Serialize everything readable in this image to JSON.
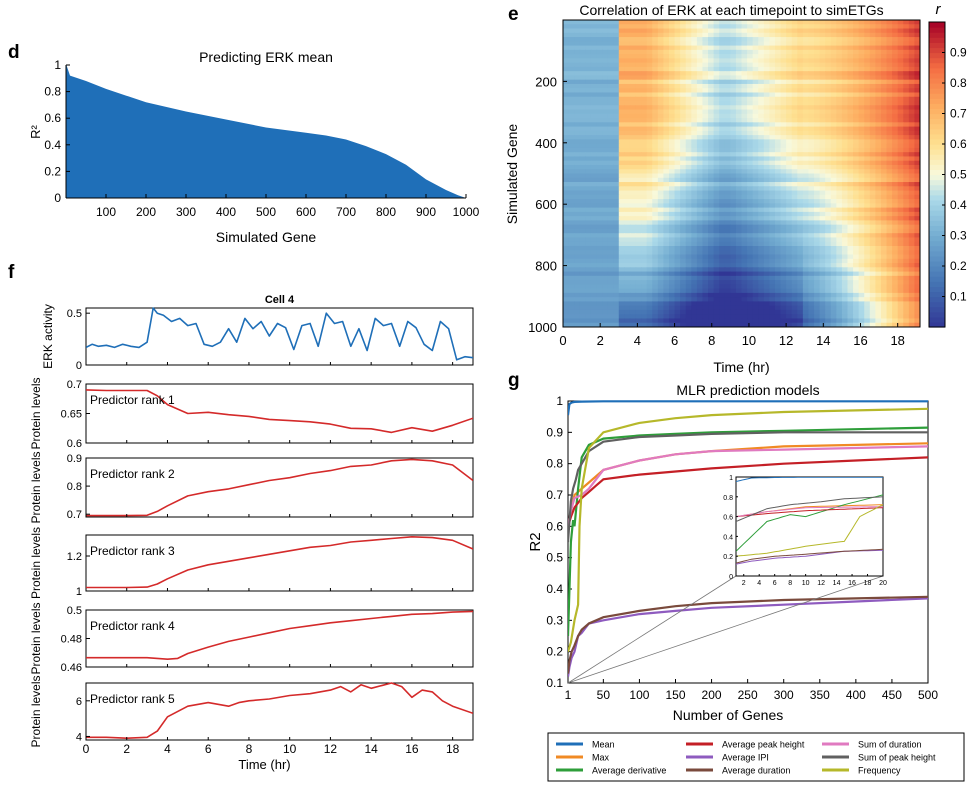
{
  "figure": {
    "panel_labels": [
      "d",
      "e",
      "f",
      "g"
    ]
  },
  "chart_data": [
    {
      "panel": "d",
      "type": "area",
      "title": "Predicting ERK mean",
      "xlabel": "Simulated Gene",
      "ylabel": "R²",
      "xlim": [
        0,
        1000
      ],
      "ylim": [
        0,
        1
      ],
      "xticks": [
        "100",
        "200",
        "300",
        "400",
        "500",
        "600",
        "700",
        "800",
        "900",
        "1000"
      ],
      "yticks": [
        "0",
        "0.2",
        "0.4",
        "0.6",
        "0.8",
        "1"
      ],
      "color": "#1f6fb8",
      "x": [
        1,
        10,
        50,
        100,
        150,
        200,
        300,
        400,
        500,
        600,
        650,
        700,
        750,
        800,
        850,
        900,
        950,
        980,
        1000
      ],
      "y": [
        1.0,
        0.92,
        0.88,
        0.82,
        0.77,
        0.72,
        0.65,
        0.59,
        0.53,
        0.49,
        0.47,
        0.44,
        0.39,
        0.33,
        0.25,
        0.14,
        0.06,
        0.02,
        0.0
      ]
    },
    {
      "panel": "e",
      "type": "heatmap",
      "title": "Correlation of ERK at each timepoint to simETGs",
      "xlabel": "Time (hr)",
      "ylabel": "Simulated Gene",
      "xlim": [
        0,
        19.2
      ],
      "ylim": [
        1000,
        0
      ],
      "xticks": [
        "0",
        "2",
        "4",
        "6",
        "8",
        "10",
        "12",
        "14",
        "16",
        "18"
      ],
      "yticks": [
        "200",
        "400",
        "600",
        "800",
        "1000"
      ],
      "colorbar": {
        "label": "r",
        "ticks": [
          "0.1",
          "0.2",
          "0.3",
          "0.4",
          "0.5",
          "0.6",
          "0.7",
          "0.8",
          "0.9"
        ],
        "range": [
          0,
          1
        ]
      }
    },
    {
      "panel": "f",
      "type": "line",
      "title": "Cell 4",
      "xlabel": "Time (hr)",
      "xticks": [
        "0",
        "2",
        "4",
        "6",
        "8",
        "10",
        "12",
        "14",
        "16",
        "18"
      ],
      "xlim": [
        0,
        19
      ],
      "subplots": [
        {
          "ylabel": "ERK activity",
          "annotation": "",
          "color": "#1f6fb8",
          "ylim": [
            0,
            0.55
          ],
          "yticks": [
            "0",
            "0.5"
          ],
          "x": [
            0,
            0.3,
            0.6,
            1,
            1.4,
            1.8,
            2.2,
            2.6,
            3.0,
            3.3,
            3.5,
            3.8,
            4.2,
            4.6,
            5.0,
            5.4,
            5.8,
            6.2,
            6.6,
            7.0,
            7.4,
            7.8,
            8.2,
            8.6,
            9.0,
            9.4,
            9.8,
            10.2,
            10.6,
            11.0,
            11.4,
            11.8,
            12.2,
            12.6,
            13.0,
            13.4,
            13.8,
            14.2,
            14.6,
            15.0,
            15.4,
            15.8,
            16.2,
            16.6,
            17.0,
            17.4,
            17.8,
            18.2,
            18.6,
            19.0
          ],
          "y": [
            0.17,
            0.2,
            0.18,
            0.19,
            0.17,
            0.2,
            0.18,
            0.17,
            0.22,
            0.55,
            0.5,
            0.48,
            0.42,
            0.45,
            0.38,
            0.4,
            0.2,
            0.18,
            0.22,
            0.35,
            0.22,
            0.45,
            0.35,
            0.42,
            0.28,
            0.4,
            0.36,
            0.15,
            0.38,
            0.4,
            0.18,
            0.5,
            0.4,
            0.42,
            0.18,
            0.35,
            0.14,
            0.45,
            0.38,
            0.4,
            0.18,
            0.42,
            0.36,
            0.2,
            0.14,
            0.42,
            0.35,
            0.05,
            0.08,
            0.07
          ]
        },
        {
          "ylabel": "Protein levels",
          "annotation": "Predictor rank 1",
          "color": "#d42a2a",
          "ylim": [
            0.6,
            0.7
          ],
          "yticks": [
            "0.6",
            "0.65",
            "0.7"
          ],
          "x": [
            0,
            1,
            2,
            3,
            3.5,
            4,
            5,
            6,
            7,
            8,
            9,
            10,
            11,
            12,
            13,
            14,
            15,
            16,
            17,
            18,
            19
          ],
          "y": [
            0.69,
            0.689,
            0.689,
            0.689,
            0.68,
            0.665,
            0.65,
            0.652,
            0.648,
            0.645,
            0.64,
            0.638,
            0.636,
            0.632,
            0.625,
            0.624,
            0.618,
            0.626,
            0.62,
            0.63,
            0.642
          ]
        },
        {
          "ylabel": "Protein levels",
          "annotation": "Predictor rank 2",
          "color": "#d42a2a",
          "ylim": [
            0.69,
            0.9
          ],
          "yticks": [
            "0.7",
            "0.8",
            "0.9"
          ],
          "x": [
            0,
            1,
            2,
            3,
            3.5,
            4,
            5,
            6,
            7,
            8,
            9,
            10,
            11,
            12,
            13,
            14,
            15,
            16,
            17,
            18,
            19
          ],
          "y": [
            0.695,
            0.695,
            0.695,
            0.696,
            0.71,
            0.73,
            0.765,
            0.78,
            0.79,
            0.805,
            0.82,
            0.83,
            0.845,
            0.855,
            0.87,
            0.875,
            0.89,
            0.895,
            0.89,
            0.875,
            0.82
          ]
        },
        {
          "ylabel": "Protein levels",
          "annotation": "Predictor rank 3",
          "color": "#d42a2a",
          "ylim": [
            1.0,
            1.32
          ],
          "yticks": [
            "1",
            "1.2"
          ],
          "x": [
            0,
            1,
            2,
            3,
            3.5,
            4,
            5,
            6,
            7,
            8,
            9,
            10,
            11,
            12,
            13,
            14,
            15,
            16,
            17,
            18,
            19
          ],
          "y": [
            1.02,
            1.02,
            1.02,
            1.022,
            1.04,
            1.07,
            1.12,
            1.15,
            1.17,
            1.19,
            1.21,
            1.23,
            1.25,
            1.26,
            1.28,
            1.29,
            1.3,
            1.31,
            1.305,
            1.29,
            1.24
          ]
        },
        {
          "ylabel": "Protein levels",
          "annotation": "Predictor rank 4",
          "color": "#d42a2a",
          "ylim": [
            0.46,
            0.5
          ],
          "yticks": [
            "0.46",
            "0.48",
            "0.5"
          ],
          "x": [
            0,
            1,
            2,
            3,
            3.5,
            4,
            4.5,
            5,
            6,
            7,
            8,
            9,
            10,
            11,
            12,
            13,
            14,
            15,
            16,
            17,
            18,
            19
          ],
          "y": [
            0.4665,
            0.4665,
            0.4665,
            0.4665,
            0.466,
            0.4655,
            0.466,
            0.4695,
            0.474,
            0.478,
            0.481,
            0.484,
            0.487,
            0.489,
            0.491,
            0.4925,
            0.494,
            0.4955,
            0.497,
            0.4975,
            0.4985,
            0.499
          ]
        },
        {
          "ylabel": "Protein levels",
          "annotation": "Predictor rank 5",
          "color": "#d42a2a",
          "ylim": [
            3.8,
            7
          ],
          "yticks": [
            "4",
            "6"
          ],
          "x": [
            0,
            1,
            2,
            3,
            3.5,
            4,
            5,
            6,
            7,
            7.5,
            8,
            9,
            10,
            11,
            12,
            12.5,
            13,
            13.5,
            14,
            15,
            15.5,
            16,
            16.5,
            17,
            17.5,
            18,
            19
          ],
          "y": [
            3.95,
            3.95,
            3.9,
            3.95,
            4.3,
            5.1,
            5.7,
            5.9,
            5.7,
            5.9,
            6.0,
            6.1,
            6.3,
            6.4,
            6.6,
            6.8,
            6.5,
            6.9,
            6.7,
            7.0,
            6.8,
            6.2,
            6.6,
            6.5,
            6.0,
            5.7,
            5.3
          ]
        }
      ]
    },
    {
      "panel": "g",
      "type": "line",
      "title": "MLR prediction models",
      "xlabel": "Number of Genes",
      "ylabel": "R2",
      "xlim": [
        1,
        500
      ],
      "ylim": [
        0.1,
        1.0
      ],
      "xticks": [
        "1",
        "50",
        "100",
        "150",
        "200",
        "250",
        "300",
        "350",
        "400",
        "450",
        "500"
      ],
      "yticks": [
        "0.1",
        "0.2",
        "0.3",
        "0.4",
        "0.5",
        "0.6",
        "0.7",
        "0.8",
        "0.9",
        "1"
      ],
      "inset": {
        "xlim": [
          1,
          20
        ],
        "ylim": [
          0,
          1
        ],
        "xticks": [
          "2",
          "4",
          "6",
          "8",
          "10",
          "12",
          "14",
          "16",
          "18",
          "20"
        ],
        "yticks": [
          "0",
          "0.2",
          "0.4",
          "0.6",
          "0.8",
          "1"
        ]
      },
      "series": [
        {
          "name": "Mean",
          "color": "#1f6fb8",
          "x": [
            1,
            3,
            6,
            10,
            20,
            50,
            100,
            200,
            300,
            400,
            500
          ],
          "y": [
            0.955,
            0.99,
            0.995,
            0.997,
            0.998,
            0.999,
            0.999,
            0.999,
            0.999,
            0.999,
            0.999
          ]
        },
        {
          "name": "Max",
          "color": "#f08a24",
          "x": [
            1,
            5,
            10,
            20,
            30,
            50,
            100,
            150,
            200,
            300,
            400,
            500
          ],
          "y": [
            0.6,
            0.65,
            0.7,
            0.72,
            0.74,
            0.78,
            0.81,
            0.83,
            0.84,
            0.855,
            0.86,
            0.865
          ]
        },
        {
          "name": "Average derivative",
          "color": "#2e9e3a",
          "x": [
            1,
            5,
            8,
            10,
            15,
            20,
            30,
            50,
            100,
            150,
            200,
            300,
            400,
            500
          ],
          "y": [
            0.25,
            0.55,
            0.62,
            0.6,
            0.72,
            0.82,
            0.86,
            0.88,
            0.89,
            0.895,
            0.9,
            0.905,
            0.91,
            0.915
          ]
        },
        {
          "name": "Average peak height",
          "color": "#c41f26",
          "x": [
            1,
            5,
            10,
            20,
            30,
            40,
            50,
            100,
            150,
            200,
            300,
            400,
            500
          ],
          "y": [
            0.6,
            0.63,
            0.66,
            0.69,
            0.71,
            0.73,
            0.75,
            0.765,
            0.775,
            0.785,
            0.8,
            0.81,
            0.82
          ]
        },
        {
          "name": "Average IPI",
          "color": "#8e5bbf",
          "x": [
            1,
            3,
            6,
            10,
            15,
            20,
            30,
            50,
            100,
            150,
            200,
            300,
            400,
            500
          ],
          "y": [
            0.12,
            0.15,
            0.18,
            0.2,
            0.25,
            0.26,
            0.29,
            0.3,
            0.32,
            0.33,
            0.34,
            0.35,
            0.36,
            0.37
          ]
        },
        {
          "name": "Average duration",
          "color": "#7a4a3c",
          "x": [
            1,
            3,
            6,
            10,
            15,
            20,
            30,
            50,
            100,
            150,
            200,
            300,
            400,
            500
          ],
          "y": [
            0.13,
            0.17,
            0.2,
            0.22,
            0.25,
            0.27,
            0.29,
            0.31,
            0.33,
            0.345,
            0.355,
            0.365,
            0.37,
            0.375
          ]
        },
        {
          "name": "Sum of duration",
          "color": "#e07ac0",
          "x": [
            1,
            5,
            10,
            20,
            30,
            50,
            100,
            150,
            200,
            300,
            400,
            500
          ],
          "y": [
            0.6,
            0.65,
            0.69,
            0.7,
            0.72,
            0.78,
            0.81,
            0.83,
            0.84,
            0.845,
            0.85,
            0.855
          ]
        },
        {
          "name": "Sum of peak height",
          "color": "#606060",
          "x": [
            1,
            5,
            8,
            12,
            15,
            20,
            30,
            50,
            100,
            150,
            200,
            300,
            400,
            500
          ],
          "y": [
            0.55,
            0.68,
            0.72,
            0.75,
            0.78,
            0.8,
            0.84,
            0.87,
            0.885,
            0.89,
            0.895,
            0.9,
            0.9,
            0.9
          ]
        },
        {
          "name": "Frequency",
          "color": "#b6b82a",
          "x": [
            1,
            5,
            10,
            15,
            17,
            20,
            30,
            50,
            100,
            150,
            200,
            300,
            400,
            500
          ],
          "y": [
            0.2,
            0.23,
            0.3,
            0.35,
            0.6,
            0.72,
            0.85,
            0.9,
            0.93,
            0.945,
            0.955,
            0.965,
            0.97,
            0.975
          ]
        }
      ]
    }
  ]
}
